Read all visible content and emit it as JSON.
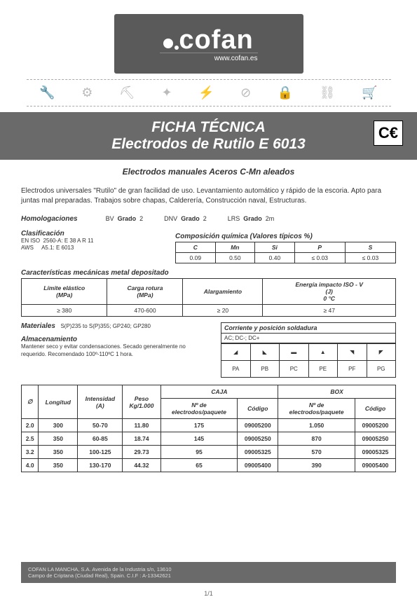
{
  "logo": {
    "brand": "cofan",
    "url": "www.cofan.es"
  },
  "title_bar": {
    "line1": "FICHA TÉCNICA",
    "line2": "Electrodos de Rutilo E 6013",
    "ce": "C€"
  },
  "subtitle": "Electrodos manuales     Aceros C-Mn  aleados",
  "description": "Electrodos universales \"Rutilo\" de gran facilidad de uso. Levantamiento automático y rápido de la escoria. Apto para juntas mal preparadas. Trabajos sobre chapas, Calderería, Construcción naval, Estructuras.",
  "homolog": {
    "label": "Homologaciones",
    "items": [
      {
        "org": "BV",
        "k": "Grado",
        "v": "2"
      },
      {
        "org": "DNV",
        "k": "Grado",
        "v": "2"
      },
      {
        "org": "LRS",
        "k": "Grado",
        "v": "2m"
      }
    ]
  },
  "clasif": {
    "label": "Clasificación",
    "rows": [
      {
        "std": "EN ISO",
        "val": "2560-A: E 38 A R 11"
      },
      {
        "std": "AWS",
        "val": "A5.1: E 6013"
      }
    ]
  },
  "comp": {
    "title": "Composición química (Valores típicos %)",
    "headers": [
      "C",
      "Mn",
      "Si",
      "P",
      "S"
    ],
    "values": [
      "0.09",
      "0.50",
      "0.40",
      "≤ 0.03",
      "≤ 0.03"
    ]
  },
  "mech": {
    "title": "Características mecánicas metal depositado",
    "cols": [
      {
        "l1": "Límite elástico",
        "l2": "(MPa)"
      },
      {
        "l1": "Carga rotura",
        "l2": "(MPa)"
      },
      {
        "l1": "Alargamiento",
        "l2": ""
      },
      {
        "l1": "Energía impacto ISO - V",
        "l2": "(J)",
        "l3": "0 °C"
      }
    ],
    "values": [
      "≥ 380",
      "470-600",
      "≥ 20",
      "≥ 47"
    ]
  },
  "materials": {
    "label": "Materiales",
    "text": "S(P)235 to S(P)355; GP240; GP280"
  },
  "storage": {
    "label": "Almacenamiento",
    "text": "Mantener seco y evitar condensaciones. Secado generalmente no requerido. Recomendado 100º-110ºC 1 hora."
  },
  "current": {
    "title": "Corriente y posición soldadura",
    "sub": "AC; DC-; DC+",
    "pos": [
      "PA",
      "PB",
      "PC",
      "PE",
      "PF",
      "PG"
    ]
  },
  "main": {
    "head1": {
      "diam": "∅",
      "long": "Longitud",
      "int1": "Intensidad",
      "int2": "(A)",
      "peso1": "Peso",
      "peso2": "Kg/1.000",
      "caja": "CAJA",
      "box": "BOX",
      "np1": "Nº de",
      "np2": "electrodos/paquete",
      "codigo": "Código"
    },
    "rows": [
      {
        "d": "2.0",
        "l": "300",
        "i": "50-70",
        "p": "11.80",
        "cn": "175",
        "cc": "09005200",
        "bn": "1.050",
        "bc": "09005200"
      },
      {
        "d": "2.5",
        "l": "350",
        "i": "60-85",
        "p": "18.74",
        "cn": "145",
        "cc": "09005250",
        "bn": "870",
        "bc": "09005250"
      },
      {
        "d": "3.2",
        "l": "350",
        "i": "100-125",
        "p": "29.73",
        "cn": "95",
        "cc": "09005325",
        "bn": "570",
        "bc": "09005325"
      },
      {
        "d": "4.0",
        "l": "350",
        "i": "130-170",
        "p": "44.32",
        "cn": "65",
        "cc": "09005400",
        "bn": "390",
        "bc": "09005400"
      }
    ]
  },
  "footer": {
    "l1": "COFAN LA MANCHA, S.A. Avenida de la Industria s/n, 13610",
    "l2": "Campo de Criptana (Ciudad Real), Spain. C.I.F : A-13342621"
  },
  "page": "1/1"
}
